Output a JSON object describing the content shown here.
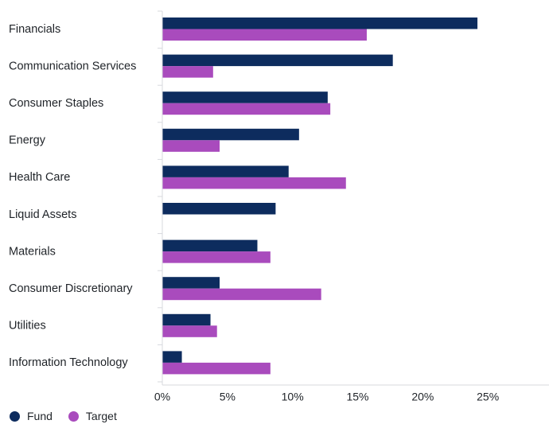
{
  "chart_data": {
    "type": "bar",
    "orientation": "horizontal",
    "categories": [
      "Financials",
      "Communication Services",
      "Consumer Staples",
      "Energy",
      "Health Care",
      "Liquid Assets",
      "Materials",
      "Consumer Discretionary",
      "Utilities",
      "Information Technology"
    ],
    "series": [
      {
        "name": "Fund",
        "color": "#0d2c5e",
        "values": [
          24.2,
          17.7,
          12.7,
          10.5,
          9.7,
          8.7,
          7.3,
          4.4,
          3.7,
          1.5
        ]
      },
      {
        "name": "Target",
        "color": "#a94bbd",
        "values": [
          15.7,
          3.9,
          12.9,
          4.4,
          14.1,
          null,
          8.3,
          12.2,
          4.2,
          8.3
        ]
      }
    ],
    "xlim": [
      0,
      30
    ],
    "xticks": [
      0,
      5,
      10,
      15,
      20,
      25
    ],
    "xtick_labels": [
      "0%",
      "5%",
      "10%",
      "15%",
      "20%",
      "25%"
    ],
    "legend_position": "bottom-left",
    "grid": false
  }
}
